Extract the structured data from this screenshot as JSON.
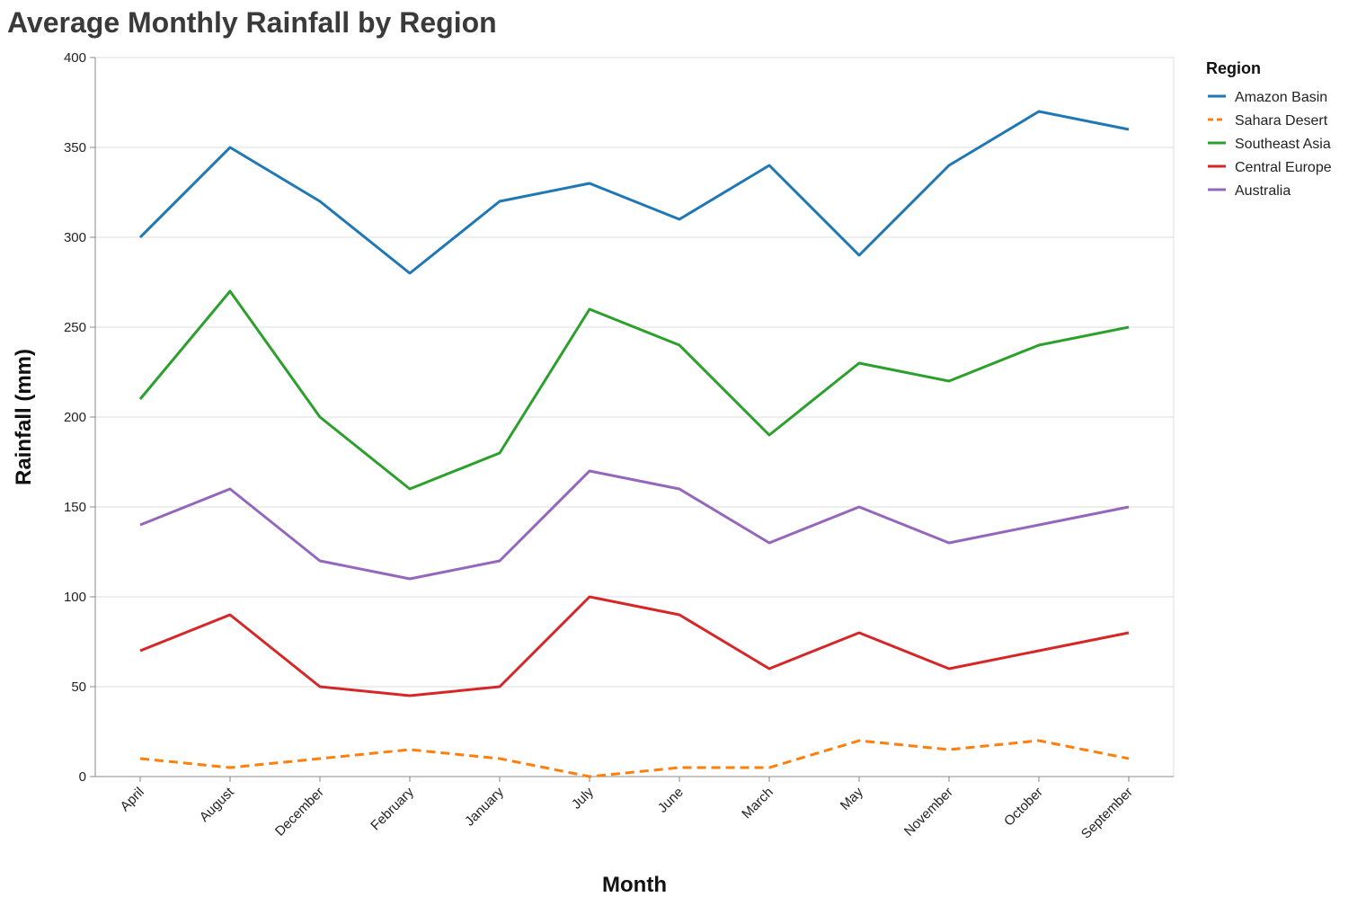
{
  "chart_data": {
    "type": "line",
    "title": "Average Monthly Rainfall by Region",
    "xlabel": "Month",
    "ylabel": "Rainfall (mm)",
    "ylim": [
      0,
      400
    ],
    "yticks": [
      0,
      50,
      100,
      150,
      200,
      250,
      300,
      350,
      400
    ],
    "grid": true,
    "legend": {
      "title": "Region",
      "placement": "top-right"
    },
    "categories": [
      "April",
      "August",
      "December",
      "February",
      "January",
      "July",
      "June",
      "March",
      "May",
      "November",
      "October",
      "September"
    ],
    "series": [
      {
        "name": "Amazon Basin",
        "color": "#1f77b4",
        "dashed": false,
        "values": [
          300,
          350,
          320,
          280,
          320,
          330,
          310,
          340,
          290,
          340,
          370,
          360
        ]
      },
      {
        "name": "Sahara Desert",
        "color": "#ff7f0e",
        "dashed": true,
        "values": [
          10,
          5,
          10,
          15,
          10,
          0,
          5,
          5,
          20,
          15,
          20,
          10
        ]
      },
      {
        "name": "Southeast Asia",
        "color": "#2ca02c",
        "dashed": false,
        "values": [
          210,
          270,
          200,
          160,
          180,
          260,
          240,
          190,
          230,
          220,
          240,
          250
        ]
      },
      {
        "name": "Central Europe",
        "color": "#d62728",
        "dashed": false,
        "values": [
          70,
          90,
          50,
          45,
          50,
          100,
          90,
          60,
          80,
          60,
          70,
          80
        ]
      },
      {
        "name": "Australia",
        "color": "#9467bd",
        "dashed": false,
        "values": [
          140,
          160,
          120,
          110,
          120,
          170,
          160,
          130,
          150,
          130,
          140,
          150
        ]
      }
    ]
  }
}
